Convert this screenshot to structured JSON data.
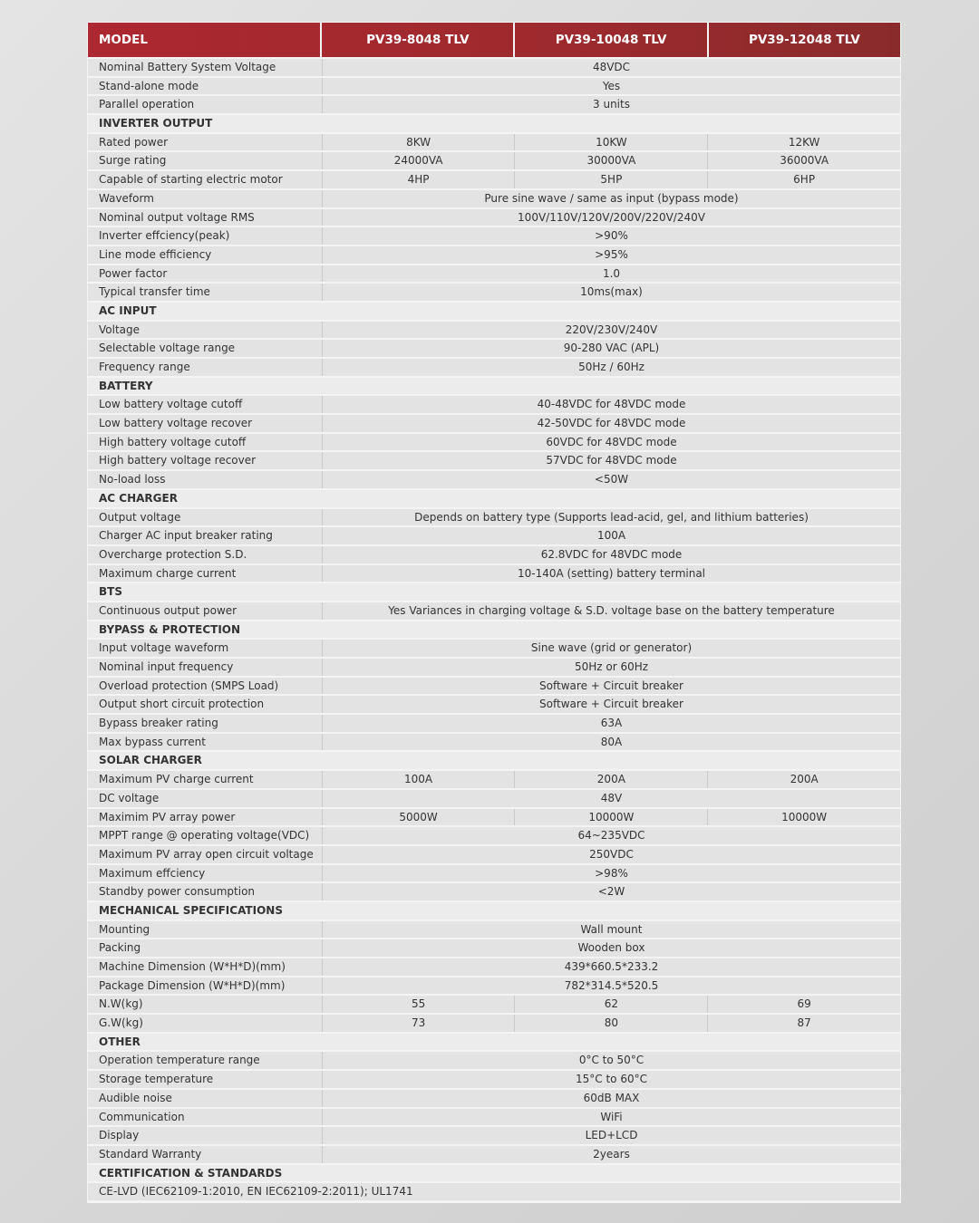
{
  "header": {
    "model_label": "MODEL",
    "models": [
      "PV39-8048 TLV",
      "PV39-10048 TLV",
      "PV39-12048 TLV"
    ]
  },
  "colors": {
    "header_red": "#a8282e",
    "row_bg": "#e3e3e3"
  },
  "rows": [
    {
      "label": "Nominal Battery System Voltage",
      "value": "48VDC"
    },
    {
      "label": "Stand-alone mode",
      "value": "Yes"
    },
    {
      "label": "Parallel operation",
      "value": "3 units"
    },
    {
      "section": "INVERTER OUTPUT"
    },
    {
      "label": "Rated power",
      "values": [
        "8KW",
        "10KW",
        "12KW"
      ]
    },
    {
      "label": "Surge rating",
      "values": [
        "24000VA",
        "30000VA",
        "36000VA"
      ]
    },
    {
      "label": "Capable of starting electric motor",
      "values": [
        "4HP",
        "5HP",
        "6HP"
      ]
    },
    {
      "label": "Waveform",
      "value": "Pure sine wave / same as input (bypass mode)"
    },
    {
      "label": "Nominal output voltage RMS",
      "value": "100V/110V/120V/200V/220V/240V"
    },
    {
      "label": "Inverter effciency(peak)",
      "value": ">90%"
    },
    {
      "label": "Line mode efficiency",
      "value": ">95%"
    },
    {
      "label": "Power factor",
      "value": "1.0"
    },
    {
      "label": "Typical transfer time",
      "value": "10ms(max)"
    },
    {
      "section": "AC INPUT"
    },
    {
      "label": "Voltage",
      "value": "220V/230V/240V"
    },
    {
      "label": "Selectable voltage range",
      "value": "90-280 VAC (APL)"
    },
    {
      "label": "Frequency range",
      "value": "50Hz / 60Hz"
    },
    {
      "section": "BATTERY"
    },
    {
      "label": "Low battery voltage cutoff",
      "value": "40-48VDC for 48VDC mode"
    },
    {
      "label": "Low battery voltage recover",
      "value": "42-50VDC for 48VDC mode"
    },
    {
      "label": "High battery voltage cutoff",
      "value": "60VDC for 48VDC mode"
    },
    {
      "label": "High battery voltage recover",
      "value": "57VDC for 48VDC mode"
    },
    {
      "label": "No-load loss",
      "value": "<50W"
    },
    {
      "section": "AC CHARGER"
    },
    {
      "label": "Output voltage",
      "value": "Depends on battery type (Supports lead-acid, gel, and lithium batteries)"
    },
    {
      "label": "Charger AC input breaker rating",
      "value": "100A"
    },
    {
      "label": "Overcharge protection S.D.",
      "value": "62.8VDC for 48VDC mode"
    },
    {
      "label": "Maximum charge current",
      "value": "10-140A (setting) battery terminal"
    },
    {
      "section": "BTS"
    },
    {
      "label": "Continuous output power",
      "value": "Yes Variances in charging voltage & S.D. voltage base on the battery temperature"
    },
    {
      "section": "BYPASS & PROTECTION"
    },
    {
      "label": "Input voltage waveform",
      "value": "Sine wave (grid or generator)"
    },
    {
      "label": "Nominal input frequency",
      "value": "50Hz or 60Hz"
    },
    {
      "label": "Overload protection (SMPS Load)",
      "value": "Software + Circuit breaker"
    },
    {
      "label": "Output short circuit protection",
      "value": "Software + Circuit breaker"
    },
    {
      "label": "Bypass breaker rating",
      "value": "63A"
    },
    {
      "label": "Max bypass current",
      "value": "80A"
    },
    {
      "section": "SOLAR CHARGER"
    },
    {
      "label": "Maximum PV charge current",
      "values": [
        "100A",
        "200A",
        "200A"
      ]
    },
    {
      "label": "DC voltage",
      "value": "48V"
    },
    {
      "label": "Maximim PV array power",
      "values": [
        "5000W",
        "10000W",
        "10000W"
      ]
    },
    {
      "label": "MPPT range @ operating voltage(VDC)",
      "value": "64~235VDC"
    },
    {
      "label": "Maximum PV array open circuit voltage",
      "value": "250VDC"
    },
    {
      "label": "Maximum effciency",
      "value": ">98%"
    },
    {
      "label": "Standby power consumption",
      "value": "<2W"
    },
    {
      "section": "MECHANICAL SPECIFICATIONS"
    },
    {
      "label": "Mounting",
      "value": "Wall mount"
    },
    {
      "label": "Packing",
      "value": "Wooden box"
    },
    {
      "label": "Machine Dimension (W*H*D)(mm)",
      "value": "439*660.5*233.2"
    },
    {
      "label": "Package Dimension (W*H*D)(mm)",
      "value": "782*314.5*520.5"
    },
    {
      "label": "N.W(kg)",
      "values": [
        "55",
        "62",
        "69"
      ]
    },
    {
      "label": "G.W(kg)",
      "values": [
        "73",
        "80",
        "87"
      ]
    },
    {
      "section": "OTHER"
    },
    {
      "label": "Operation temperature range",
      "value": "0°C to 50°C"
    },
    {
      "label": "Storage temperature",
      "value": "15°C to 60°C"
    },
    {
      "label": "Audible noise",
      "value": "60dB MAX"
    },
    {
      "label": "Communication",
      "value": "WiFi"
    },
    {
      "label": "Display",
      "value": "LED+LCD"
    },
    {
      "label": "Standard Warranty",
      "value": "2years"
    },
    {
      "section": "CERTIFICATION & STANDARDS"
    },
    {
      "full": "CE-LVD (IEC62109-1:2010, EN IEC62109-2:2011); UL1741"
    }
  ]
}
